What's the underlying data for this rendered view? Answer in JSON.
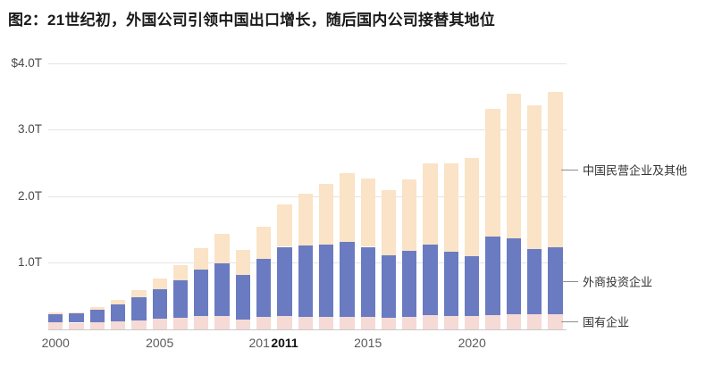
{
  "title": "图2：21世纪初，外国公司引领中国出口增长，随后国内公司接替其地位",
  "colors": {
    "background": "#ffffff",
    "gridline": "#e4e4e4",
    "axis_line": "#c9c9c9",
    "soe_pink": "#F5DAD6",
    "fie_blue": "#6A7BC1",
    "private_peach": "#FAE3C6",
    "tick_label": "#5a5a5a",
    "highlight_tick": "#111111",
    "legend_text": "#333333"
  },
  "chart_data": {
    "type": "bar",
    "stacked": true,
    "title": "图2：21世纪初，外国公司引领中国出口增长，随后国内公司接替其地位",
    "x": [
      2000,
      2001,
      2002,
      2003,
      2004,
      2005,
      2006,
      2007,
      2008,
      2009,
      2010,
      2011,
      2012,
      2013,
      2014,
      2015,
      2016,
      2017,
      2018,
      2019,
      2020,
      2021,
      2022,
      2023,
      2024
    ],
    "series": [
      {
        "name": "国有企业",
        "color": "#F5DAD6",
        "values": [
          0.11,
          0.1,
          0.11,
          0.12,
          0.14,
          0.16,
          0.18,
          0.2,
          0.2,
          0.15,
          0.19,
          0.2,
          0.19,
          0.19,
          0.19,
          0.19,
          0.17,
          0.19,
          0.21,
          0.2,
          0.2,
          0.21,
          0.23,
          0.23,
          0.23
        ]
      },
      {
        "name": "外商投资企业",
        "color": "#6A7BC1",
        "values": [
          0.12,
          0.14,
          0.18,
          0.25,
          0.34,
          0.44,
          0.56,
          0.7,
          0.79,
          0.67,
          0.87,
          1.04,
          1.07,
          1.08,
          1.12,
          1.05,
          0.94,
          0.99,
          1.06,
          0.97,
          0.9,
          1.19,
          1.14,
          0.98,
          1.0
        ]
      },
      {
        "name": "中国民营企业及其他",
        "color": "#FAE3C6",
        "values": [
          0.02,
          0.02,
          0.04,
          0.07,
          0.11,
          0.16,
          0.22,
          0.32,
          0.44,
          0.38,
          0.48,
          0.64,
          0.78,
          0.92,
          1.03,
          1.02,
          0.98,
          1.07,
          1.22,
          1.32,
          1.48,
          1.91,
          2.17,
          2.16,
          2.34
        ]
      }
    ],
    "y_ticks": [
      {
        "value": 4.0,
        "label": "$4.0T"
      },
      {
        "value": 3.0,
        "label": "3.0T"
      },
      {
        "value": 2.0,
        "label": "2.0T"
      },
      {
        "value": 1.0,
        "label": "1.0T"
      }
    ],
    "x_ticks": [
      {
        "year": 2000,
        "label": "2000"
      },
      {
        "year": 2005,
        "label": "2005"
      },
      {
        "year": 2010,
        "label": "201",
        "clipped": true
      },
      {
        "year": 2011,
        "label": "2011",
        "bold": true
      },
      {
        "year": 2015,
        "label": "2015"
      },
      {
        "year": 2020,
        "label": "2020"
      }
    ],
    "ylim": [
      0,
      4.0
    ],
    "grid": true,
    "legend_position": "right"
  }
}
